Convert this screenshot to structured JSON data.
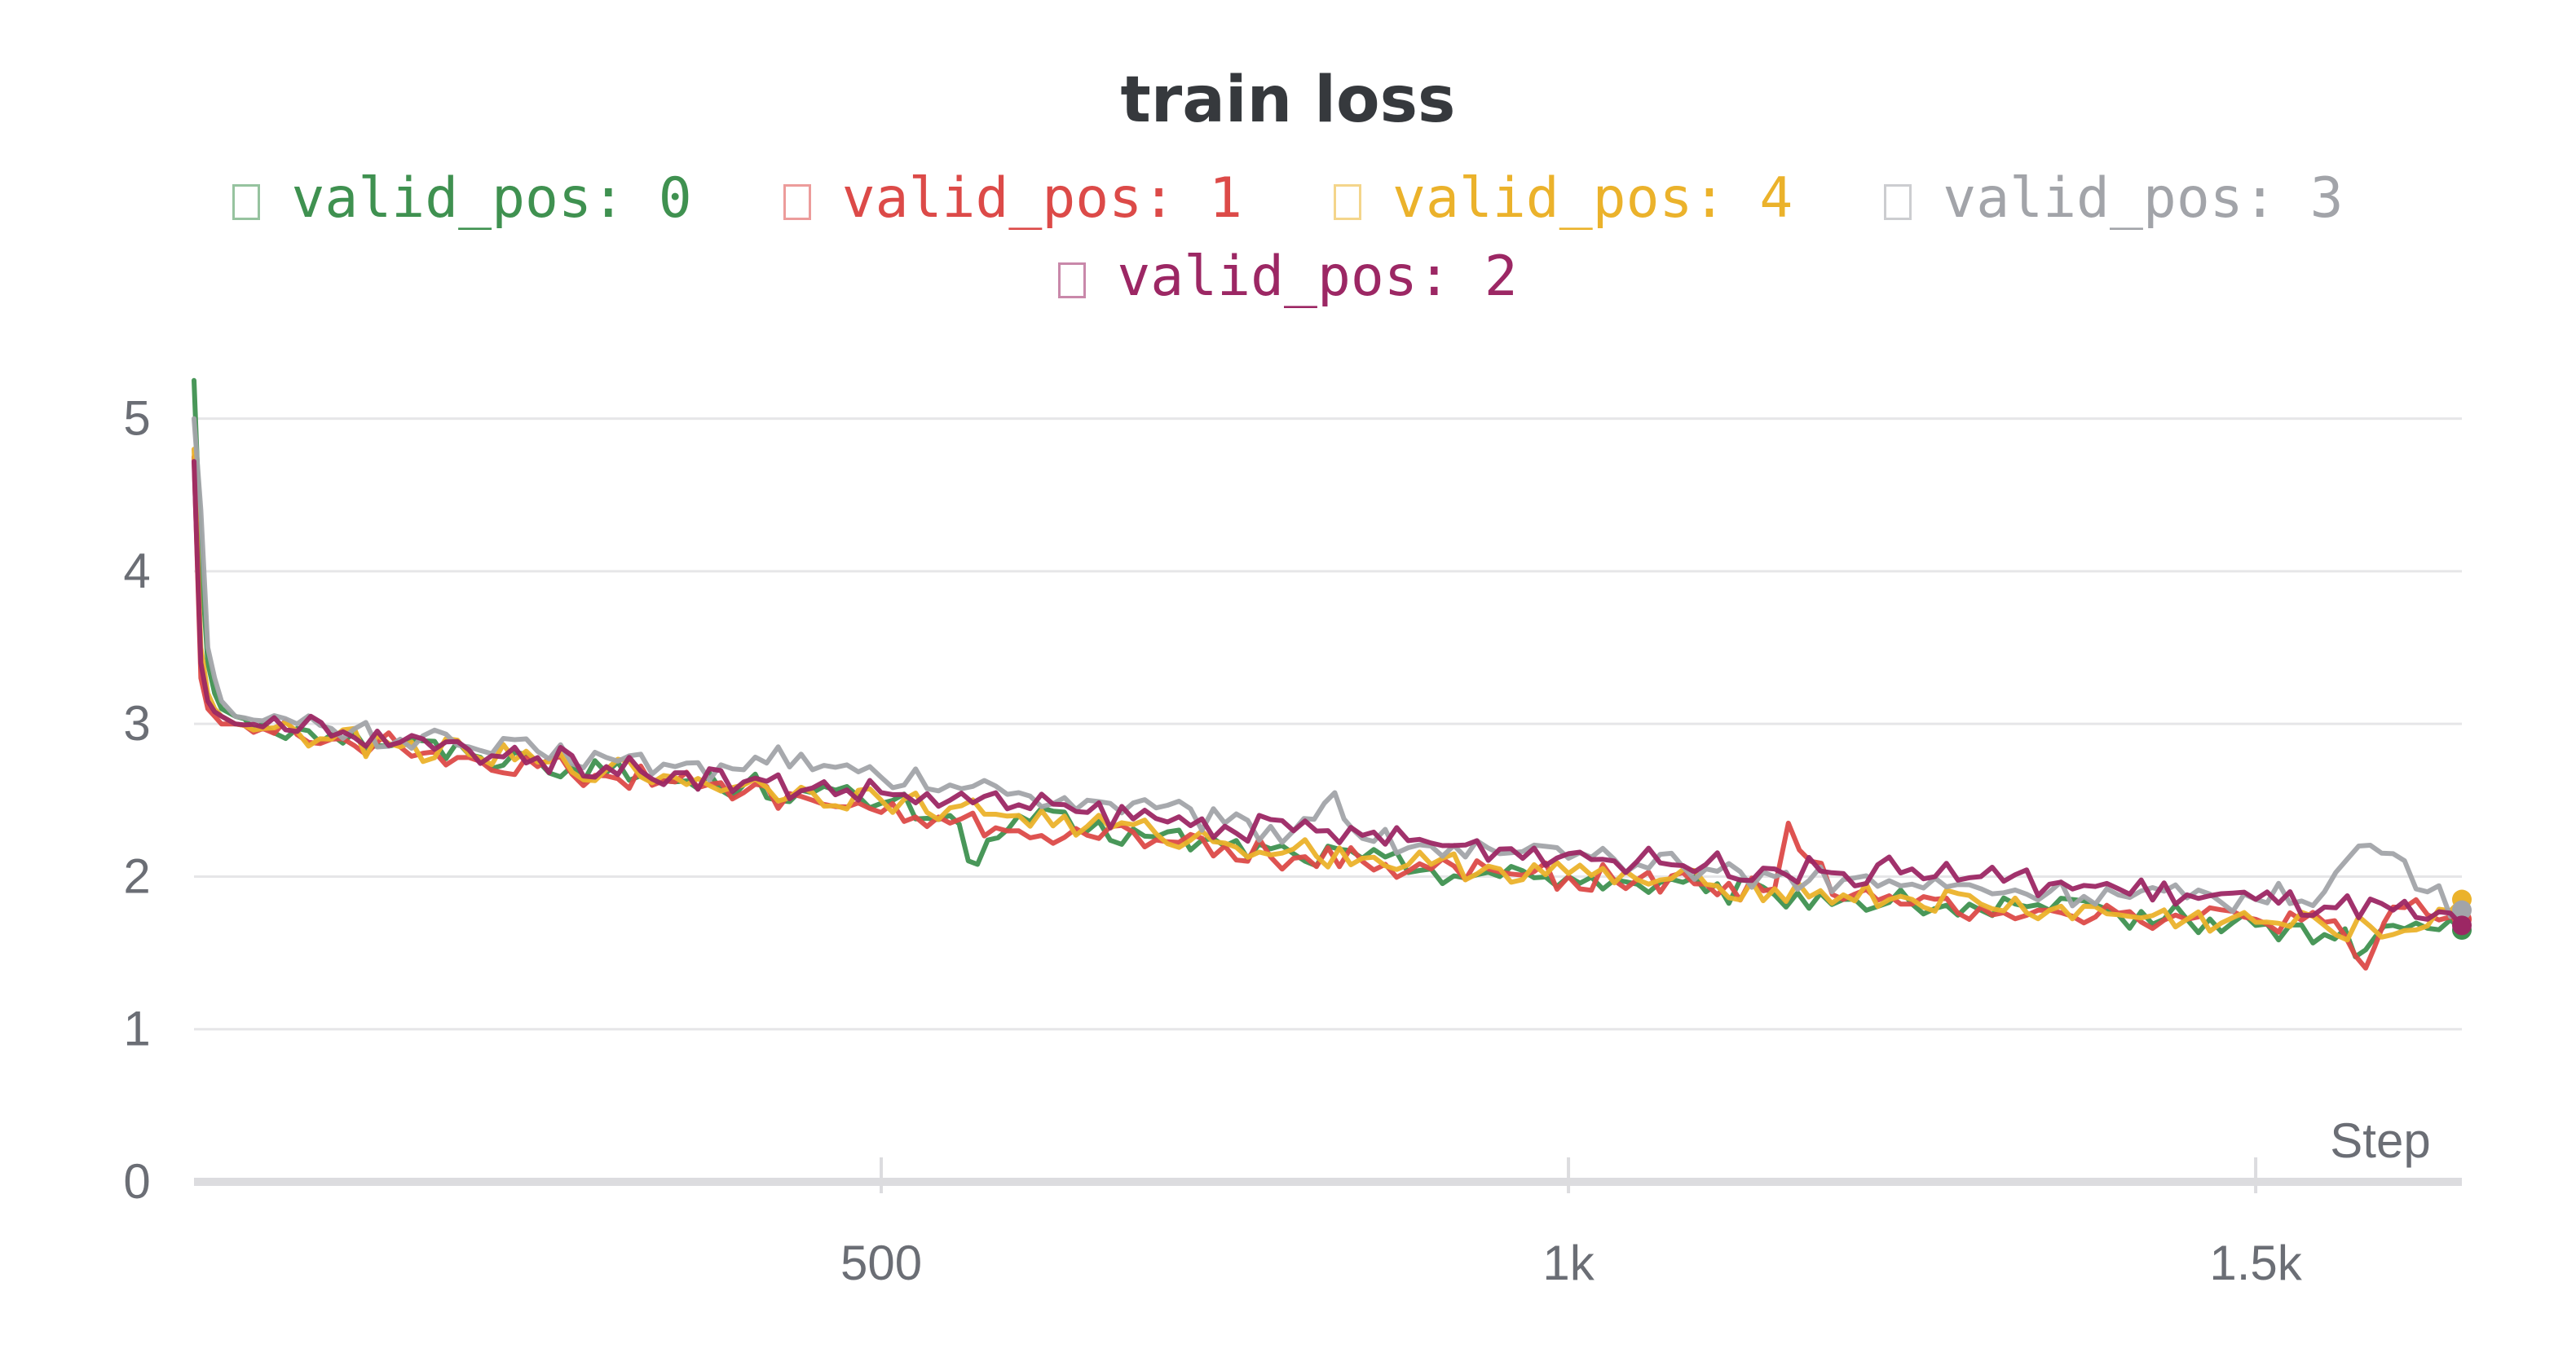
{
  "chart_data": {
    "type": "line",
    "title": "train loss",
    "xlabel": "Step",
    "ylabel": "",
    "xlim": [
      0,
      1650
    ],
    "ylim": [
      0,
      5.5
    ],
    "x_ticks": [
      500,
      1000,
      1500
    ],
    "x_tick_labels": [
      "500",
      "1k",
      "1.5k"
    ],
    "y_ticks": [
      0,
      1,
      2,
      3,
      4,
      5
    ],
    "y_tick_labels": [
      "0",
      "1",
      "2",
      "3",
      "4",
      "5"
    ],
    "grid": true,
    "legend_position": "top-center",
    "series": [
      {
        "name": "valid_pos: 0",
        "color": "#3f9150",
        "x": [
          0,
          5,
          10,
          15,
          20,
          30,
          50,
          75,
          100,
          150,
          200,
          250,
          300,
          350,
          400,
          450,
          500,
          550,
          570,
          600,
          650,
          700,
          750,
          800,
          850,
          900,
          950,
          1000,
          1050,
          1100,
          1150,
          1200,
          1250,
          1300,
          1350,
          1400,
          1450,
          1500,
          1550,
          1580,
          1600,
          1650
        ],
        "y": [
          5.25,
          4.1,
          3.4,
          3.2,
          3.1,
          3.05,
          3.0,
          2.97,
          2.93,
          2.87,
          2.8,
          2.76,
          2.68,
          2.62,
          2.6,
          2.55,
          2.48,
          2.4,
          2.08,
          2.4,
          2.3,
          2.26,
          2.2,
          2.15,
          2.12,
          2.05,
          2.0,
          2.0,
          1.95,
          1.9,
          1.88,
          1.85,
          1.82,
          1.78,
          1.78,
          1.75,
          1.72,
          1.68,
          1.62,
          1.52,
          1.68,
          1.65
        ]
      },
      {
        "name": "valid_pos: 1",
        "color": "#dc4a48",
        "x": [
          0,
          5,
          10,
          15,
          20,
          30,
          50,
          75,
          100,
          150,
          200,
          250,
          300,
          350,
          400,
          450,
          500,
          550,
          600,
          650,
          700,
          750,
          800,
          850,
          900,
          950,
          1000,
          1050,
          1100,
          1150,
          1160,
          1200,
          1250,
          1300,
          1350,
          1400,
          1450,
          1500,
          1550,
          1580,
          1600,
          1650
        ],
        "y": [
          4.75,
          3.3,
          3.1,
          3.05,
          3.0,
          3.0,
          2.97,
          2.93,
          2.9,
          2.85,
          2.78,
          2.72,
          2.66,
          2.62,
          2.55,
          2.5,
          2.42,
          2.35,
          2.3,
          2.27,
          2.24,
          2.2,
          2.12,
          2.1,
          2.05,
          2.03,
          2.0,
          1.98,
          1.95,
          1.92,
          2.35,
          1.85,
          1.82,
          1.8,
          1.78,
          1.76,
          1.72,
          1.72,
          1.7,
          1.4,
          1.8,
          1.72
        ]
      },
      {
        "name": "valid_pos: 4",
        "color": "#ebb22b",
        "x": [
          0,
          5,
          10,
          15,
          20,
          30,
          50,
          75,
          100,
          150,
          200,
          250,
          300,
          350,
          400,
          450,
          500,
          550,
          600,
          650,
          700,
          750,
          800,
          850,
          900,
          950,
          1000,
          1050,
          1100,
          1150,
          1200,
          1250,
          1300,
          1350,
          1400,
          1450,
          1500,
          1550,
          1600,
          1650
        ],
        "y": [
          4.8,
          3.5,
          3.2,
          3.1,
          3.05,
          3.0,
          2.97,
          2.95,
          2.9,
          2.85,
          2.8,
          2.75,
          2.7,
          2.65,
          2.6,
          2.55,
          2.5,
          2.45,
          2.4,
          2.33,
          2.28,
          2.22,
          2.18,
          2.12,
          2.08,
          2.05,
          2.02,
          1.98,
          1.95,
          1.92,
          1.88,
          1.85,
          1.82,
          1.78,
          1.75,
          1.72,
          1.7,
          1.68,
          1.62,
          1.85
        ]
      },
      {
        "name": "valid_pos: 3",
        "color": "#a2a4a9",
        "x": [
          0,
          5,
          10,
          15,
          20,
          30,
          50,
          75,
          100,
          150,
          200,
          250,
          300,
          350,
          400,
          425,
          450,
          500,
          550,
          600,
          650,
          700,
          750,
          800,
          830,
          850,
          900,
          950,
          1000,
          1050,
          1100,
          1150,
          1200,
          1250,
          1300,
          1350,
          1400,
          1450,
          1500,
          1550,
          1575,
          1600,
          1625,
          1650
        ],
        "y": [
          5.0,
          4.4,
          3.5,
          3.3,
          3.15,
          3.05,
          3.02,
          3.0,
          2.97,
          2.9,
          2.85,
          2.82,
          2.78,
          2.72,
          2.7,
          2.85,
          2.7,
          2.65,
          2.6,
          2.55,
          2.5,
          2.45,
          2.35,
          2.3,
          2.55,
          2.25,
          2.2,
          2.15,
          2.12,
          2.08,
          2.05,
          2.0,
          1.98,
          1.95,
          1.92,
          1.9,
          1.88,
          1.86,
          1.85,
          1.9,
          2.2,
          2.15,
          1.9,
          1.78
        ]
      },
      {
        "name": "valid_pos: 2",
        "color": "#9c2764",
        "x": [
          0,
          5,
          10,
          15,
          20,
          30,
          50,
          75,
          85,
          100,
          150,
          200,
          250,
          300,
          350,
          400,
          450,
          500,
          550,
          600,
          650,
          700,
          750,
          800,
          850,
          900,
          950,
          1000,
          1050,
          1100,
          1150,
          1200,
          1250,
          1300,
          1350,
          1400,
          1450,
          1500,
          1550,
          1600,
          1625,
          1650
        ],
        "y": [
          4.72,
          3.4,
          3.15,
          3.08,
          3.05,
          3.0,
          2.98,
          2.95,
          3.05,
          2.92,
          2.88,
          2.83,
          2.78,
          2.72,
          2.68,
          2.62,
          2.58,
          2.55,
          2.5,
          2.47,
          2.42,
          2.38,
          2.33,
          2.3,
          2.27,
          2.22,
          2.18,
          2.15,
          2.1,
          2.08,
          2.05,
          2.02,
          2.05,
          2.0,
          1.95,
          1.92,
          1.88,
          1.85,
          1.8,
          1.78,
          1.72,
          1.68
        ]
      }
    ]
  }
}
